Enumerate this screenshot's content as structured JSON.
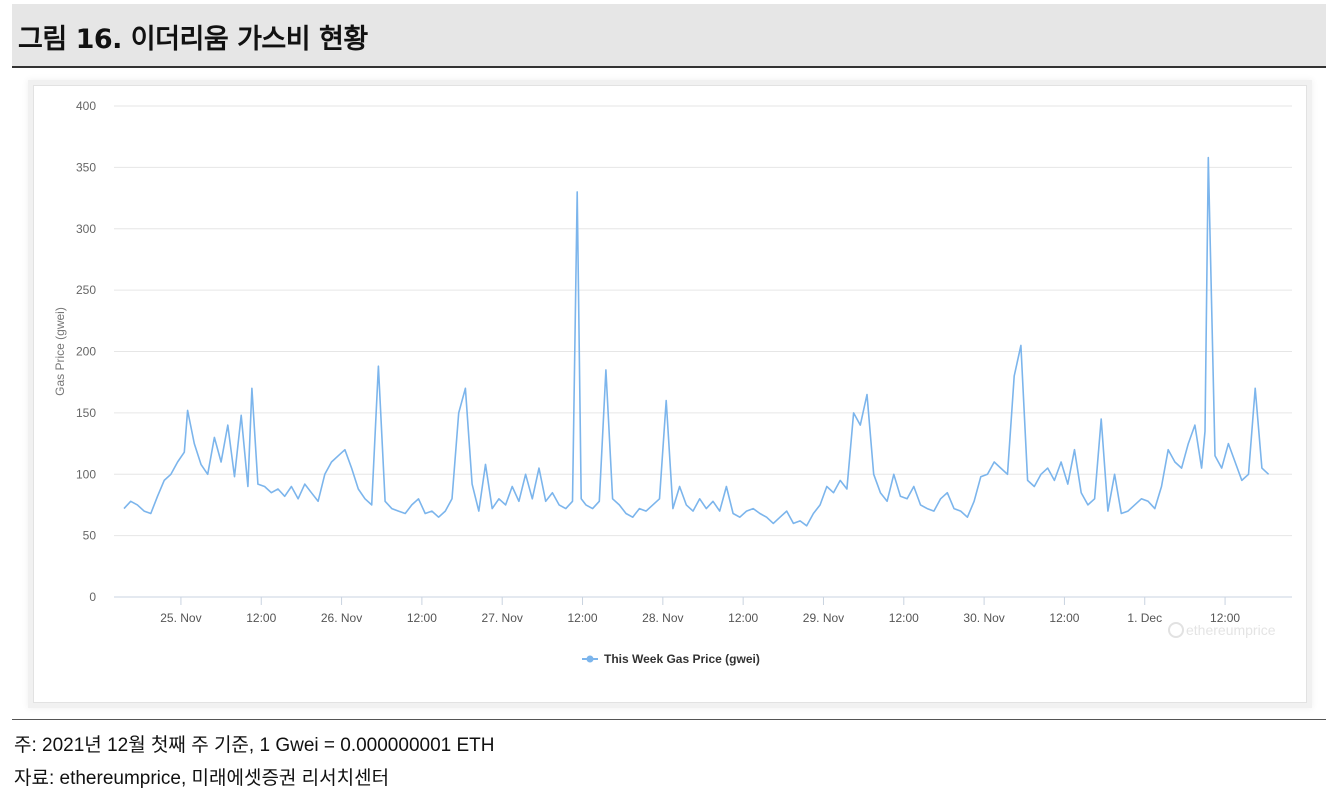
{
  "figure": {
    "title": "그림 16. 이더리움 가스비 현황"
  },
  "footnotes": {
    "note": "주: 2021년 12월 첫째 주 기준, 1 Gwei = 0.000000001 ETH",
    "source": "자료: ethereumprice, 미래에셋증권 리서치센터"
  },
  "watermark": "ethereumprice",
  "chart_data": {
    "type": "line",
    "title": "",
    "xlabel": "",
    "ylabel": "Gas Price (gwei)",
    "ylim": [
      0,
      400
    ],
    "y_ticks": [
      0,
      50,
      100,
      150,
      200,
      250,
      300,
      350,
      400
    ],
    "x_range_hours": [
      -10,
      166
    ],
    "x_tick_labels": [
      {
        "label": "25. Nov",
        "h": 0
      },
      {
        "label": "12:00",
        "h": 12
      },
      {
        "label": "26. Nov",
        "h": 24
      },
      {
        "label": "12:00",
        "h": 36
      },
      {
        "label": "27. Nov",
        "h": 48
      },
      {
        "label": "12:00",
        "h": 60
      },
      {
        "label": "28. Nov",
        "h": 72
      },
      {
        "label": "12:00",
        "h": 84
      },
      {
        "label": "29. Nov",
        "h": 96
      },
      {
        "label": "12:00",
        "h": 108
      },
      {
        "label": "30. Nov",
        "h": 120
      },
      {
        "label": "12:00",
        "h": 132
      },
      {
        "label": "1. Dec",
        "h": 144
      },
      {
        "label": "12:00",
        "h": 156
      }
    ],
    "grid": true,
    "legend_position": "bottom-center",
    "series": [
      {
        "name": "This Week Gas Price (gwei)",
        "color": "#7cb5ec",
        "x": [
          -8.5,
          -7.5,
          -6.5,
          -5.5,
          -4.5,
          -3.5,
          -2.5,
          -1.5,
          -0.5,
          0.5,
          1.0,
          2.0,
          3.0,
          4.0,
          5.0,
          6.0,
          7.0,
          8.0,
          9.0,
          10.0,
          10.6,
          11.5,
          12.5,
          13.5,
          14.5,
          15.5,
          16.5,
          17.5,
          18.5,
          19.5,
          20.5,
          21.5,
          22.5,
          23.5,
          24.5,
          25.5,
          26.5,
          27.5,
          28.5,
          29.5,
          30.5,
          31.5,
          32.5,
          33.5,
          34.5,
          35.5,
          36.5,
          37.5,
          38.5,
          39.5,
          40.5,
          41.5,
          42.5,
          43.5,
          44.5,
          45.5,
          46.5,
          47.5,
          48.5,
          49.5,
          50.5,
          51.5,
          52.5,
          53.5,
          54.5,
          55.5,
          56.5,
          57.5,
          58.5,
          59.2,
          59.8,
          60.5,
          61.5,
          62.5,
          63.5,
          64.5,
          65.5,
          66.5,
          67.5,
          68.5,
          69.5,
          70.5,
          71.5,
          72.5,
          73.5,
          74.5,
          75.5,
          76.5,
          77.5,
          78.5,
          79.5,
          80.5,
          81.5,
          82.5,
          83.5,
          84.5,
          85.5,
          86.5,
          87.5,
          88.5,
          89.5,
          90.5,
          91.5,
          92.5,
          93.5,
          94.5,
          95.5,
          96.5,
          97.5,
          98.5,
          99.5,
          100.5,
          101.5,
          102.5,
          103.5,
          104.5,
          105.5,
          106.5,
          107.5,
          108.5,
          109.5,
          110.5,
          111.5,
          112.5,
          113.5,
          114.5,
          115.5,
          116.5,
          117.5,
          118.5,
          119.5,
          120.5,
          121.5,
          122.5,
          123.5,
          124.5,
          125.5,
          126.5,
          127.5,
          128.5,
          129.5,
          130.5,
          131.5,
          132.5,
          133.5,
          134.5,
          135.5,
          136.5,
          137.5,
          138.5,
          139.5,
          140.5,
          141.5,
          142.5,
          143.5,
          144.5,
          145.5,
          146.5,
          147.5,
          148.5,
          149.5,
          150.5,
          151.5,
          152.5,
          153.0,
          153.5,
          154.5,
          155.5,
          156.5,
          157.5,
          158.5,
          159.5,
          160.5,
          161.5,
          162.5
        ],
        "values": [
          72,
          78,
          75,
          70,
          68,
          82,
          95,
          100,
          110,
          118,
          152,
          125,
          108,
          100,
          130,
          110,
          140,
          98,
          148,
          90,
          170,
          92,
          90,
          85,
          88,
          82,
          90,
          80,
          92,
          85,
          78,
          100,
          110,
          115,
          120,
          105,
          88,
          80,
          75,
          188,
          78,
          72,
          70,
          68,
          75,
          80,
          68,
          70,
          65,
          70,
          80,
          150,
          170,
          92,
          70,
          108,
          72,
          80,
          75,
          90,
          78,
          100,
          80,
          105,
          78,
          85,
          75,
          72,
          78,
          330,
          80,
          75,
          72,
          78,
          185,
          80,
          75,
          68,
          65,
          72,
          70,
          75,
          80,
          160,
          72,
          90,
          75,
          70,
          80,
          72,
          78,
          70,
          90,
          68,
          65,
          70,
          72,
          68,
          65,
          60,
          65,
          70,
          60,
          62,
          58,
          68,
          75,
          90,
          85,
          95,
          88,
          150,
          140,
          165,
          100,
          85,
          78,
          100,
          82,
          80,
          90,
          75,
          72,
          70,
          80,
          85,
          72,
          70,
          65,
          78,
          98,
          100,
          110,
          105,
          100,
          180,
          205,
          95,
          90,
          100,
          105,
          95,
          110,
          92,
          120,
          85,
          75,
          80,
          145,
          70,
          100,
          68,
          70,
          75,
          80,
          78,
          72,
          90,
          120,
          110,
          105,
          125,
          140,
          105,
          135,
          358,
          115,
          105,
          125,
          110,
          95,
          100,
          170,
          105,
          100
        ],
        "grid_fill": "#e6e6e6"
      }
    ]
  }
}
